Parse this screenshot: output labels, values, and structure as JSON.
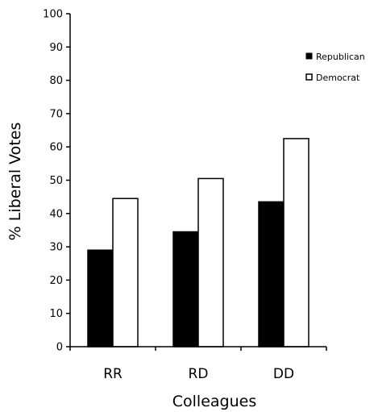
{
  "chart_data": {
    "type": "bar",
    "xlabel": "Colleagues",
    "ylabel": "% Liberal Votes",
    "ylim": [
      0,
      100
    ],
    "yticks": [
      0,
      10,
      20,
      30,
      40,
      50,
      60,
      70,
      80,
      90,
      100
    ],
    "categories": [
      "RR",
      "RD",
      "DD"
    ],
    "series": [
      {
        "name": "Republican",
        "values": [
          29,
          34.5,
          43.5
        ],
        "color": "#000000"
      },
      {
        "name": "Democrat",
        "values": [
          44.5,
          50.5,
          62.5
        ],
        "color": "#ffffff"
      }
    ],
    "legend": "right",
    "grid": false
  }
}
